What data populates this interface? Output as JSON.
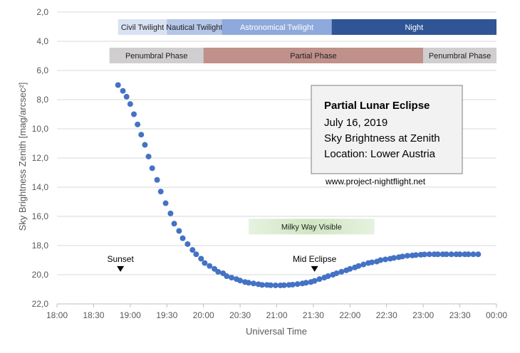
{
  "chart_data": {
    "type": "scatter",
    "xlabel": "Universal Time",
    "ylabel": "Sky Brightness Zenith [mag/arcsec²]",
    "xlim_minutes": [
      1080,
      1440
    ],
    "ylim": [
      2,
      22
    ],
    "y_inverted": true,
    "grid": "horizontal",
    "x_ticks": [
      "18:00",
      "18:30",
      "19:00",
      "19:30",
      "20:00",
      "20:30",
      "21:00",
      "21:30",
      "22:00",
      "22:30",
      "23:00",
      "23:30",
      "00:00"
    ],
    "y_ticks": [
      "2,0",
      "4,0",
      "6,0",
      "8,0",
      "10,0",
      "12,0",
      "14,0",
      "16,0",
      "18,0",
      "20,0",
      "22,0"
    ],
    "series_color": "#4472C4",
    "x": [
      "18:50",
      "18:54",
      "18:57",
      "19:00",
      "19:03",
      "19:06",
      "19:09",
      "19:12",
      "19:15",
      "19:18",
      "19:22",
      "19:25",
      "19:29",
      "19:33",
      "19:36",
      "19:40",
      "19:43",
      "19:47",
      "19:51",
      "19:54",
      "19:58",
      "20:01",
      "20:05",
      "20:09",
      "20:12",
      "20:16",
      "20:19",
      "20:23",
      "20:27",
      "20:30",
      "20:34",
      "20:37",
      "20:41",
      "20:45",
      "20:48",
      "20:52",
      "20:55",
      "20:59",
      "21:03",
      "21:06",
      "21:10",
      "21:13",
      "21:17",
      "21:21",
      "21:24",
      "21:28",
      "21:31",
      "21:35",
      "21:39",
      "21:42",
      "21:46",
      "21:49",
      "21:53",
      "21:57",
      "22:00",
      "22:04",
      "22:07",
      "22:11",
      "22:15",
      "22:18",
      "22:22",
      "22:25",
      "22:29",
      "22:33",
      "22:36",
      "22:40",
      "22:43",
      "22:47",
      "22:51",
      "22:54",
      "22:58",
      "23:01",
      "23:05",
      "23:09",
      "23:12",
      "23:16",
      "23:19",
      "23:23",
      "23:27",
      "23:30",
      "23:34",
      "23:37",
      "23:41",
      "23:45"
    ],
    "y": [
      7.0,
      7.4,
      7.8,
      8.3,
      9.0,
      9.7,
      10.4,
      11.1,
      11.9,
      12.7,
      13.5,
      14.3,
      15.1,
      15.8,
      16.5,
      17.0,
      17.5,
      17.9,
      18.3,
      18.6,
      18.9,
      19.2,
      19.4,
      19.6,
      19.8,
      19.9,
      20.1,
      20.2,
      20.3,
      20.4,
      20.5,
      20.55,
      20.6,
      20.65,
      20.7,
      20.7,
      20.72,
      20.73,
      20.73,
      20.72,
      20.7,
      20.68,
      20.64,
      20.6,
      20.55,
      20.5,
      20.42,
      20.3,
      20.2,
      20.1,
      20.0,
      19.9,
      19.8,
      19.7,
      19.6,
      19.5,
      19.4,
      19.3,
      19.2,
      19.15,
      19.1,
      19.0,
      18.95,
      18.9,
      18.85,
      18.8,
      18.75,
      18.7,
      18.68,
      18.65,
      18.63,
      18.61,
      18.6,
      18.6,
      18.6,
      18.6,
      18.6,
      18.6,
      18.6,
      18.6,
      18.6,
      18.6,
      18.6,
      18.6
    ],
    "twilight_bands": [
      {
        "label": "Civil Twilight",
        "start": "18:50",
        "end": "19:30",
        "color": "#D9E2F3",
        "text_color": "#1F1F1F"
      },
      {
        "label": "Nautical Twilight",
        "start": "19:30",
        "end": "20:15",
        "color": "#B4C6E7",
        "text_color": "#1F1F1F"
      },
      {
        "label": "Astronomical Twilight",
        "start": "20:15",
        "end": "21:45",
        "color": "#8EA9DB",
        "text_color": "#FFFFFF"
      },
      {
        "label": "Night",
        "start": "21:45",
        "end": "00:00",
        "color": "#2F5597",
        "text_color": "#FFFFFF"
      }
    ],
    "phase_bands": [
      {
        "label": "Penumbral Phase",
        "start": "18:43",
        "end": "20:00",
        "color": "#D0CECE",
        "text_color": "#1F1F1F"
      },
      {
        "label": "Partial Phase",
        "start": "20:00",
        "end": "23:00",
        "color": "#C0908A",
        "text_color": "#1F1F1F"
      },
      {
        "label": "Penumbral Phase",
        "start": "23:00",
        "end": "00:00",
        "color": "#D0CECE",
        "text_color": "#1F1F1F"
      }
    ],
    "milky_way": {
      "label": "Milky Way Visible",
      "start": "20:37",
      "end": "22:20",
      "y": 16.7
    },
    "markers": [
      {
        "label": "Sunset",
        "time": "18:52",
        "y": 19.7
      },
      {
        "label": "Mid Eclipse",
        "time": "21:31",
        "y": 19.7
      }
    ],
    "info_box": {
      "title": "Partial Lunar Eclipse",
      "lines": [
        "July 16, 2019",
        "Sky Brightness at Zenith",
        "Location: Lower Austria"
      ]
    },
    "url": "www.project-nightflight.net"
  }
}
